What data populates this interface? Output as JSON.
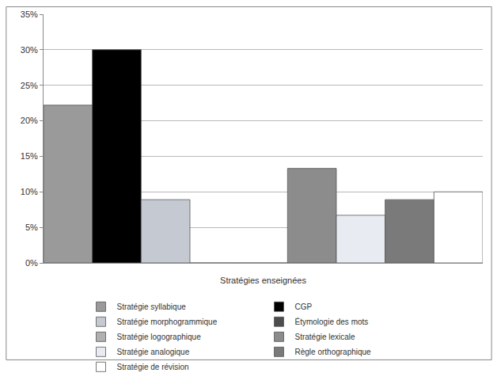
{
  "chart_data": {
    "type": "bar",
    "x_label": "Stratégies enseignées",
    "categories": [
      null
    ],
    "series": [
      {
        "name": "Stratégie syllabique",
        "color": "#9a9a9a",
        "values": [
          22.2
        ]
      },
      {
        "name": "CGP",
        "color": "#000000",
        "values": [
          30
        ]
      },
      {
        "name": "Stratégie morphogrammique",
        "color": "#c4c9d2",
        "values": [
          8.9
        ]
      },
      {
        "name": "Étymologie des mots",
        "color": "#4d4d4d",
        "values": [
          0
        ]
      },
      {
        "name": "Stratégie logographique",
        "color": "#b0b0b0",
        "values": [
          0
        ]
      },
      {
        "name": "Stratégie lexicale",
        "color": "#8c8c8c",
        "values": [
          13.3
        ]
      },
      {
        "name": "Stratégie analogique",
        "color": "#e8ebf2",
        "values": [
          6.7
        ]
      },
      {
        "name": "Règle orthographique",
        "color": "#7a7a7a",
        "values": [
          8.9
        ]
      },
      {
        "name": "Stratégie de révision",
        "color": "#ffffff",
        "values": [
          10
        ]
      }
    ],
    "ylim": [
      0,
      35
    ],
    "yticks": [
      {
        "value": 0,
        "label": "0%"
      },
      {
        "value": 5,
        "label": "5%"
      },
      {
        "value": 10,
        "label": "10%"
      },
      {
        "value": 15,
        "label": "15%"
      },
      {
        "value": 20,
        "label": "20%"
      },
      {
        "value": 25,
        "label": "25%"
      },
      {
        "value": 30,
        "label": "30%"
      },
      {
        "value": 35,
        "label": "35%"
      }
    ],
    "grid": true,
    "legend": "bottom"
  }
}
